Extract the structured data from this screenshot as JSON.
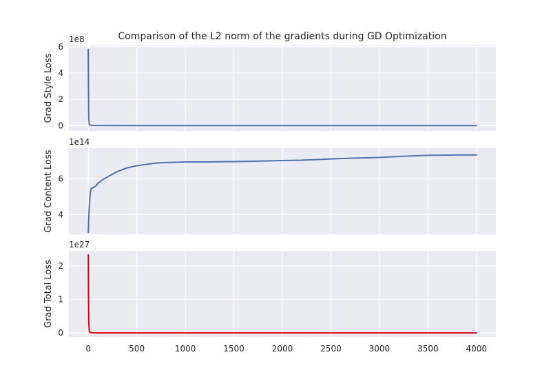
{
  "figure": {
    "title": "Comparison of the L2 norm of the gradients during GD Optimization"
  },
  "chart_data": [
    {
      "type": "line",
      "ylabel": "Grad Style Loss",
      "offset_text": "1e8",
      "xlim": [
        -200,
        4200
      ],
      "ylim": [
        -0.4,
        6.1
      ],
      "x_ticks": [
        0,
        500,
        1000,
        1500,
        2000,
        2500,
        3000,
        3500,
        4000
      ],
      "y_ticks": [
        0,
        2,
        4,
        6
      ],
      "y_tick_labels": [
        "0",
        "2",
        "4",
        "6"
      ],
      "grid": true,
      "color": "#4c72b0",
      "series": [
        {
          "x": [
            0,
            2,
            5,
            10,
            20,
            50,
            100,
            200,
            500,
            1000,
            1500,
            2000,
            2500,
            3000,
            3500,
            4000
          ],
          "values": [
            5.8,
            3.0,
            0.6,
            0.12,
            0.04,
            0.02,
            0.015,
            0.01,
            0.008,
            0.006,
            0.005,
            0.004,
            0.004,
            0.003,
            0.003,
            0.003
          ]
        }
      ]
    },
    {
      "type": "line",
      "ylabel": "Grad Content Loss",
      "offset_text": "1e14",
      "xlim": [
        -200,
        4200
      ],
      "ylim": [
        2.9,
        7.7
      ],
      "x_ticks": [
        0,
        500,
        1000,
        1500,
        2000,
        2500,
        3000,
        3500,
        4000
      ],
      "y_ticks": [
        4,
        6
      ],
      "y_tick_labels": [
        "4",
        "6"
      ],
      "grid": true,
      "color": "#4c72b0",
      "series": [
        {
          "x": [
            0,
            5,
            10,
            20,
            30,
            50,
            80,
            100,
            150,
            200,
            300,
            400,
            500,
            600,
            700,
            800,
            1000,
            1200,
            1500,
            1700,
            2000,
            2200,
            2500,
            2700,
            3000,
            3200,
            3500,
            3800,
            4000
          ],
          "values": [
            3.0,
            3.8,
            4.4,
            5.2,
            5.45,
            5.5,
            5.6,
            5.75,
            5.95,
            6.1,
            6.4,
            6.6,
            6.72,
            6.8,
            6.87,
            6.9,
            6.93,
            6.93,
            6.95,
            6.97,
            7.01,
            7.03,
            7.1,
            7.14,
            7.18,
            7.24,
            7.3,
            7.32,
            7.32
          ]
        }
      ]
    },
    {
      "type": "line",
      "ylabel": "Grad Total Loss",
      "offset_text": "1e27",
      "xlim": [
        -200,
        4200
      ],
      "ylim": [
        -0.12,
        2.45
      ],
      "x_ticks": [
        0,
        500,
        1000,
        1500,
        2000,
        2500,
        3000,
        3500,
        4000
      ],
      "x_tick_labels": [
        "0",
        "500",
        "1000",
        "1500",
        "2000",
        "2500",
        "3000",
        "3500",
        "4000"
      ],
      "y_ticks": [
        0,
        1,
        2
      ],
      "y_tick_labels": [
        "0",
        "1",
        "2"
      ],
      "grid": true,
      "color": "#e8000b",
      "series": [
        {
          "x": [
            0,
            2,
            5,
            10,
            20,
            50,
            100,
            500,
            1000,
            2000,
            3000,
            4000
          ],
          "values": [
            2.33,
            1.2,
            0.3,
            0.05,
            0.01,
            0.004,
            0.002,
            0.001,
            0.001,
            0.001,
            0.001,
            0.001
          ]
        }
      ]
    }
  ]
}
